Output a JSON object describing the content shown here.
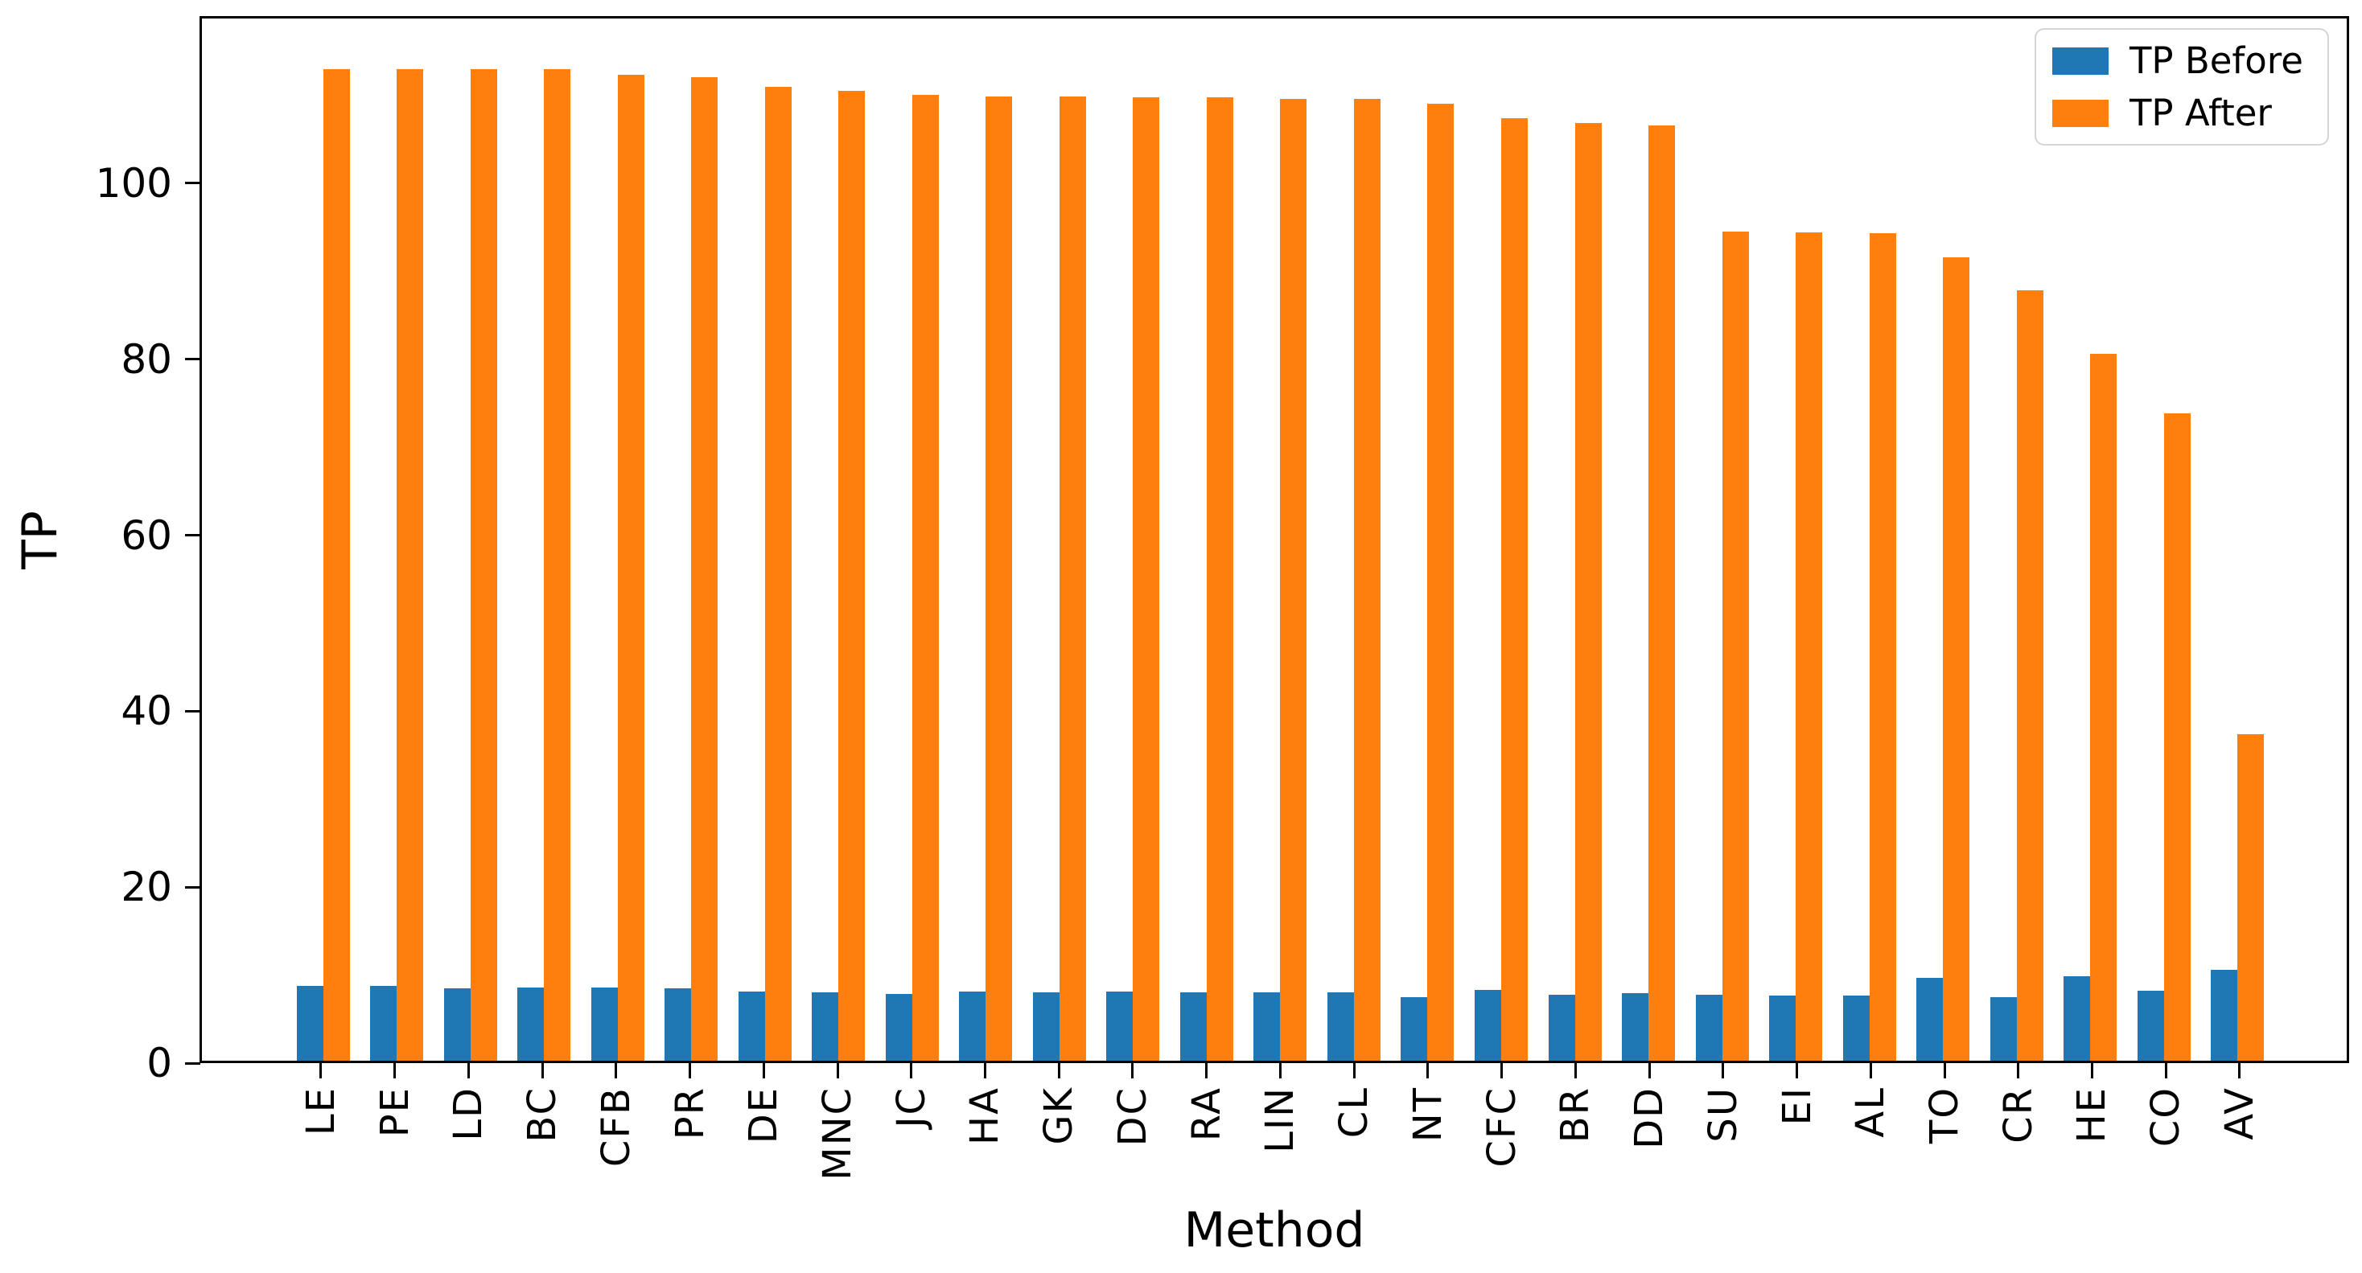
{
  "chart_data": {
    "type": "bar",
    "title": "",
    "xlabel": "Method",
    "ylabel": "TP",
    "ylim": [
      0,
      119
    ],
    "yticks": [
      0,
      20,
      40,
      60,
      80,
      100
    ],
    "grid": false,
    "legend_position": "upper right",
    "categories": [
      "LE",
      "PE",
      "LD",
      "BC",
      "CFB",
      "PR",
      "DE",
      "MNC",
      "JC",
      "HA",
      "GK",
      "DC",
      "RA",
      "LIN",
      "CL",
      "NT",
      "CFC",
      "BR",
      "DD",
      "SU",
      "EI",
      "AL",
      "TO",
      "CR",
      "HE",
      "CO",
      "AV"
    ],
    "series": [
      {
        "name": "TP Before",
        "color": "#1f77b4",
        "values": [
          8.5,
          8.5,
          8.3,
          8.4,
          8.4,
          8.3,
          7.9,
          7.8,
          7.6,
          7.9,
          7.8,
          7.9,
          7.8,
          7.8,
          7.8,
          7.3,
          8.1,
          7.5,
          7.7,
          7.5,
          7.4,
          7.4,
          9.5,
          7.3,
          9.6,
          8.0,
          10.4
        ]
      },
      {
        "name": "TP After",
        "color": "#ff7f0e",
        "values": [
          113.2,
          113.2,
          113.2,
          113.2,
          112.6,
          112.3,
          111.2,
          110.7,
          110.3,
          110.1,
          110.1,
          110.0,
          110.0,
          109.8,
          109.8,
          109.3,
          107.6,
          107.1,
          106.8,
          94.7,
          94.6,
          94.5,
          91.7,
          88.0,
          80.7,
          73.9,
          37.3
        ]
      }
    ]
  }
}
